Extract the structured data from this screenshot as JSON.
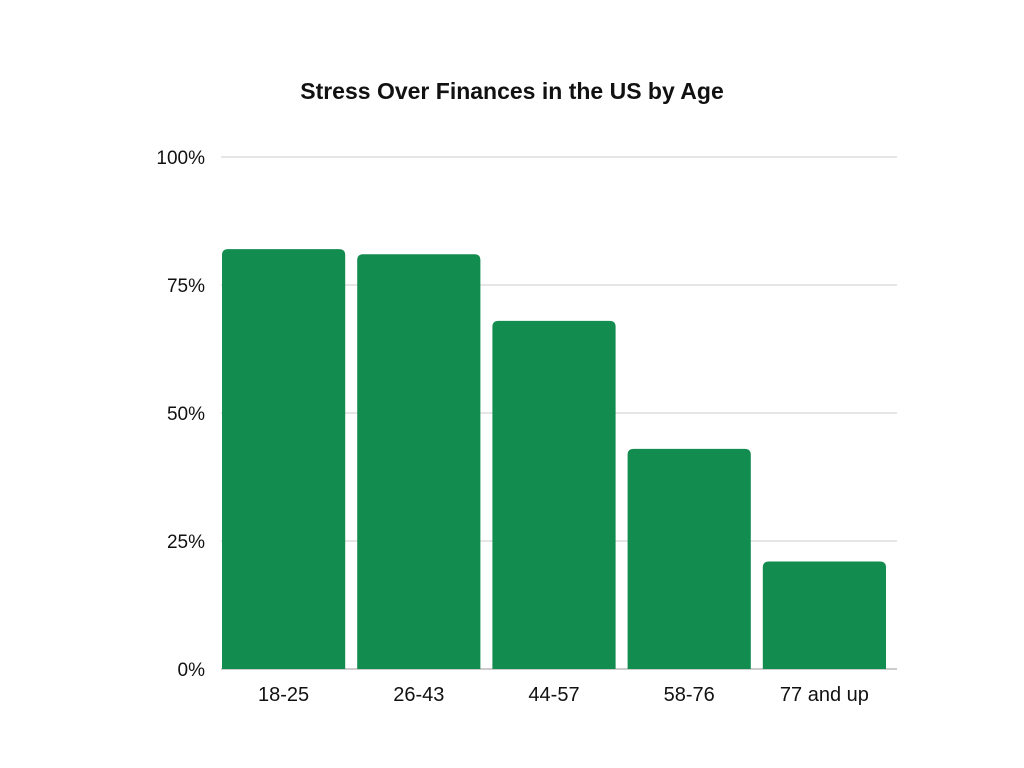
{
  "chart_data": {
    "type": "bar",
    "title": "Stress Over Finances in the US by Age",
    "xlabel": "",
    "ylabel": "",
    "categories": [
      "18-25",
      "26-43",
      "44-57",
      "58-76",
      "77 and up"
    ],
    "values": [
      82,
      81,
      68,
      43,
      21
    ],
    "ylim": [
      0,
      100
    ],
    "yticks": [
      0,
      25,
      50,
      75,
      100
    ],
    "ytick_labels": [
      "0%",
      "25%",
      "50%",
      "75%",
      "100%"
    ],
    "grid": true,
    "legend": "none",
    "bar_color": "#138C50"
  }
}
